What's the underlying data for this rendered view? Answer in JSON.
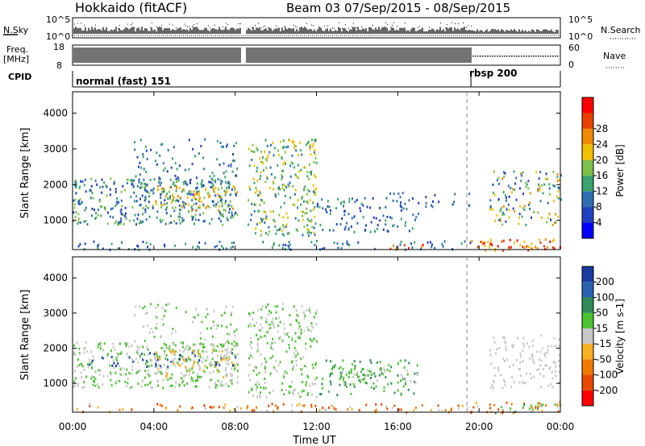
{
  "header": {
    "title": "Hokkaido (fitACF)",
    "beam_date": "Beam 03  07/Sep/2015 - 08/Sep/2015"
  },
  "noise_panel": {
    "left_label": "N.Sky",
    "right_label": "N.Search",
    "left_ticks": [
      "10^5",
      "10^0"
    ],
    "right_ticks": [
      "10^5",
      "10^0"
    ]
  },
  "freq_panel": {
    "left_label_1": "Freq.",
    "left_label_2": "[MHz]",
    "right_label": "Nave",
    "left_ticks": [
      "18",
      "8"
    ],
    "right_ticks": [
      "60",
      "0"
    ]
  },
  "cpid_panel": {
    "label": "CPID",
    "modes": [
      {
        "name": "normal (fast) 151",
        "start_hour": 0,
        "end_hour": 19.6
      },
      {
        "name": "rbsp 200",
        "start_hour": 19.6,
        "end_hour": 24
      }
    ]
  },
  "chart_data": [
    {
      "type": "heatmap",
      "panel": "power",
      "ylabel": "Slant Range [km]",
      "yticks": [
        "1000",
        "2000",
        "3000",
        "4000"
      ],
      "ylim": [
        180,
        4600
      ],
      "xlim": [
        0,
        24
      ],
      "colorbar_label": "Power [dB]",
      "colorbar_ticks": [
        "4",
        "8",
        "12",
        "16",
        "20",
        "24",
        "28"
      ],
      "colorbar_colors": [
        "#0000ff",
        "#1e3fbf",
        "#2f6fb0",
        "#3aa26e",
        "#7cc04a",
        "#f0c000",
        "#f08a00",
        "#e84000",
        "#ff0000"
      ],
      "colorbar_range": [
        0,
        32
      ]
    },
    {
      "type": "heatmap",
      "panel": "velocity",
      "ylabel": "Slant Range [km]",
      "yticks": [
        "1000",
        "2000",
        "3000",
        "4000"
      ],
      "ylim": [
        180,
        4600
      ],
      "xlim": [
        0,
        24
      ],
      "xlabel": "Time UT",
      "xticks": [
        "00:00",
        "04:00",
        "08:00",
        "12:00",
        "16:00",
        "20:00",
        "00:00"
      ],
      "colorbar_label": "Velocity [m s-1]",
      "colorbar_ticks": [
        "200",
        "100",
        "50",
        "15",
        "-15",
        "-50",
        "-100",
        "-200"
      ],
      "colorbar_colors": [
        "#1a3aa0",
        "#2a62b0",
        "#2e8b57",
        "#4cc233",
        "#c8c8c8",
        "#f6b020",
        "#f07a00",
        "#e84800",
        "#ff0000"
      ]
    }
  ]
}
